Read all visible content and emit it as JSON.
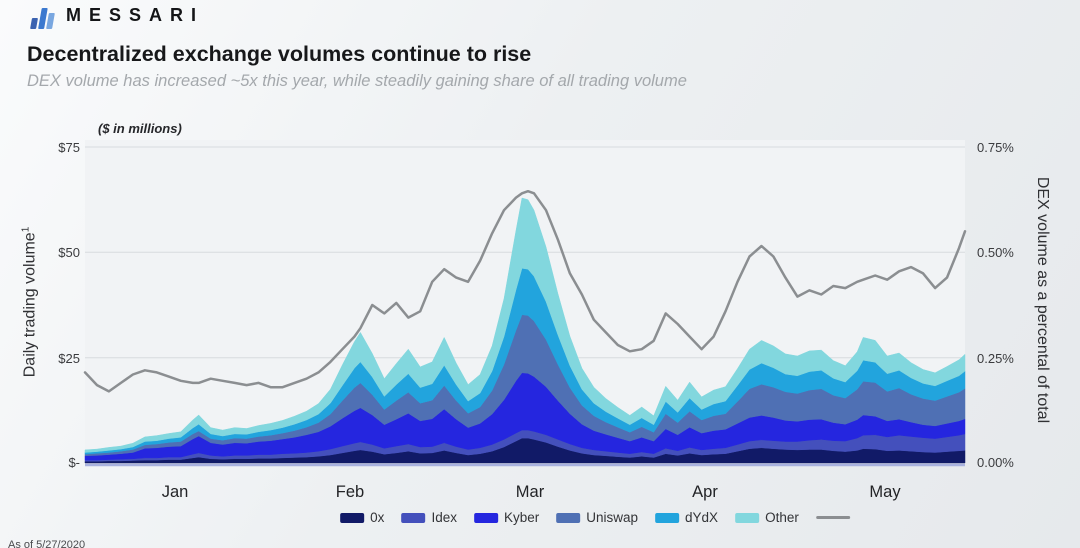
{
  "header": {
    "brand": "MESSARI",
    "logo_colors": [
      "#3b62b0",
      "#3c79cf",
      "#79a7e0"
    ],
    "title": "Decentralized exchange volumes continue to rise",
    "subtitle": "DEX volume has increased ~5x this year, while steadily gaining share of all trading volume"
  },
  "chart_data": {
    "type": "area",
    "stacked": true,
    "title": "Decentralized exchange volumes continue to rise",
    "units_note": "($ in millions)",
    "grid": true,
    "left_axis": {
      "label": "Daily trading volume",
      "superscript": "1",
      "ticks": [
        "$75",
        "$50",
        "$25",
        "$-"
      ],
      "min": 0,
      "max": 75
    },
    "right_axis": {
      "label": "DEX volume as a percental of total",
      "ticks": [
        "0.75%",
        "0.50%",
        "0.25%",
        "0.00%"
      ],
      "min": 0,
      "max": 0.75
    },
    "x_axis": {
      "labels": [
        "Jan",
        "Feb",
        "Mar",
        "Apr",
        "May"
      ],
      "start": "Jan 1 2020",
      "end": "May 27 2020",
      "days_total": 147
    },
    "days": [
      0,
      2,
      4,
      6,
      8,
      10,
      12,
      14,
      16,
      18,
      19,
      21,
      23,
      25,
      27,
      29,
      31,
      33,
      35,
      37,
      39,
      41,
      43,
      45,
      46,
      48,
      50,
      52,
      54,
      56,
      58,
      60,
      62,
      64,
      66,
      68,
      70,
      72,
      73,
      74,
      75,
      77,
      79,
      81,
      83,
      85,
      87,
      89,
      91,
      93,
      95,
      97,
      99,
      101,
      103,
      105,
      107,
      109,
      111,
      113,
      115,
      117,
      119,
      121,
      123,
      125,
      127,
      129,
      130,
      132,
      134,
      136,
      138,
      140,
      142,
      144,
      146,
      147
    ],
    "series": [
      {
        "name": "0x",
        "color": "#111a67",
        "values": [
          0.4,
          0.4,
          0.5,
          0.5,
          0.6,
          0.7,
          0.7,
          0.8,
          0.8,
          1.2,
          1.4,
          1.0,
          0.9,
          1.0,
          1.0,
          1.1,
          1.1,
          1.2,
          1.3,
          1.4,
          1.6,
          1.9,
          2.4,
          2.9,
          3.1,
          2.7,
          2.1,
          2.4,
          2.8,
          2.3,
          2.4,
          3.0,
          2.4,
          1.9,
          2.2,
          2.8,
          3.8,
          5.2,
          5.9,
          5.9,
          5.6,
          4.9,
          3.9,
          3.0,
          2.3,
          1.9,
          1.7,
          1.5,
          1.3,
          1.6,
          1.3,
          2.2,
          1.8,
          2.3,
          1.9,
          2.1,
          2.2,
          2.8,
          3.4,
          3.6,
          3.4,
          3.2,
          3.1,
          3.2,
          3.2,
          2.9,
          2.7,
          3.0,
          3.4,
          3.3,
          2.9,
          3.0,
          2.8,
          2.6,
          2.5,
          2.7,
          2.9,
          3.0
        ]
      },
      {
        "name": "Idex",
        "color": "#4450bc",
        "values": [
          0.3,
          0.3,
          0.3,
          0.4,
          0.4,
          0.5,
          0.5,
          0.6,
          0.6,
          0.9,
          1.0,
          0.8,
          0.7,
          0.8,
          0.8,
          0.9,
          0.9,
          1.0,
          1.0,
          1.1,
          1.2,
          1.4,
          1.6,
          1.8,
          1.9,
          1.7,
          1.4,
          1.6,
          1.7,
          1.5,
          1.5,
          1.8,
          1.5,
          1.3,
          1.4,
          1.6,
          1.8,
          1.9,
          1.9,
          1.9,
          1.9,
          1.8,
          1.7,
          1.5,
          1.3,
          1.2,
          1.1,
          1.0,
          0.9,
          1.0,
          0.9,
          1.3,
          1.1,
          1.4,
          1.2,
          1.3,
          1.4,
          1.6,
          1.8,
          1.9,
          1.9,
          1.9,
          2.0,
          2.2,
          2.4,
          2.4,
          2.5,
          2.9,
          3.2,
          3.4,
          3.3,
          3.6,
          3.5,
          3.4,
          3.3,
          3.5,
          3.7,
          3.9
        ]
      },
      {
        "name": "Kyber",
        "color": "#2526df",
        "values": [
          1.0,
          1.1,
          1.2,
          1.3,
          1.5,
          2.3,
          2.4,
          2.5,
          2.6,
          3.6,
          4.0,
          3.0,
          2.8,
          3.0,
          2.9,
          3.1,
          3.3,
          3.5,
          3.8,
          4.2,
          4.6,
          5.4,
          6.6,
          7.7,
          8.1,
          7.0,
          5.6,
          6.4,
          7.3,
          6.2,
          6.6,
          8.0,
          6.5,
          5.2,
          5.8,
          7.2,
          9.4,
          12.4,
          13.6,
          13.5,
          13.0,
          11.4,
          9.2,
          7.2,
          5.6,
          4.6,
          4.0,
          3.5,
          3.0,
          3.5,
          3.0,
          4.6,
          3.8,
          4.8,
          4.0,
          4.3,
          4.4,
          5.0,
          5.6,
          5.8,
          5.5,
          5.0,
          4.8,
          4.9,
          4.8,
          4.3,
          4.0,
          4.4,
          4.8,
          4.4,
          3.8,
          3.8,
          3.4,
          3.1,
          3.0,
          3.2,
          3.4,
          3.6
        ]
      },
      {
        "name": "Uniswap",
        "color": "#4f70b4",
        "values": [
          0.4,
          0.5,
          0.5,
          0.6,
          0.7,
          0.8,
          0.9,
          1.0,
          1.1,
          1.2,
          1.2,
          1.0,
          1.0,
          1.1,
          1.1,
          1.2,
          1.3,
          1.4,
          1.6,
          1.8,
          2.2,
          2.9,
          4.2,
          5.5,
          5.9,
          4.8,
          3.6,
          4.4,
          5.0,
          4.2,
          4.4,
          5.6,
          4.4,
          3.4,
          3.9,
          5.6,
          8.4,
          12.0,
          13.8,
          13.7,
          13.2,
          11.2,
          8.6,
          6.2,
          4.5,
          3.5,
          2.9,
          2.5,
          2.1,
          2.5,
          2.1,
          3.6,
          2.9,
          3.8,
          3.1,
          3.5,
          3.7,
          5.2,
          6.8,
          7.4,
          7.2,
          6.8,
          6.6,
          7.0,
          7.2,
          6.5,
          6.2,
          7.2,
          8.0,
          8.0,
          7.0,
          7.4,
          6.6,
          6.2,
          6.0,
          6.4,
          6.8,
          7.2
        ]
      },
      {
        "name": "dYdX",
        "color": "#22a4dd",
        "values": [
          0.4,
          0.4,
          0.5,
          0.5,
          0.6,
          0.8,
          0.8,
          0.9,
          1.0,
          1.4,
          1.6,
          1.1,
          1.0,
          1.0,
          1.0,
          1.1,
          1.2,
          1.3,
          1.5,
          1.7,
          2.0,
          2.6,
          3.6,
          4.6,
          5.0,
          4.2,
          3.1,
          3.8,
          4.4,
          3.7,
          3.9,
          4.8,
          3.8,
          2.9,
          3.3,
          4.6,
          6.6,
          9.6,
          11.0,
          11.0,
          10.6,
          9.0,
          7.0,
          5.2,
          3.8,
          3.0,
          2.5,
          2.1,
          1.8,
          2.1,
          1.8,
          2.9,
          2.4,
          3.1,
          2.5,
          2.8,
          3.0,
          3.8,
          4.6,
          5.0,
          4.6,
          4.2,
          4.2,
          4.4,
          4.4,
          4.0,
          3.8,
          4.4,
          5.0,
          4.8,
          4.2,
          4.2,
          3.9,
          3.6,
          3.5,
          3.7,
          3.9,
          4.1
        ]
      },
      {
        "name": "Other",
        "color": "#82d7de",
        "values": [
          0.6,
          0.6,
          0.7,
          0.7,
          0.9,
          1.1,
          1.2,
          1.2,
          1.3,
          1.9,
          2.2,
          1.5,
          1.4,
          1.5,
          1.4,
          1.5,
          1.6,
          1.7,
          1.9,
          2.1,
          2.5,
          3.3,
          4.9,
          6.3,
          7.0,
          5.6,
          4.2,
          5.0,
          5.8,
          4.9,
          5.2,
          6.6,
          5.1,
          3.9,
          4.4,
          6.0,
          9.0,
          14.1,
          16.7,
          16.5,
          15.7,
          13.0,
          9.8,
          7.0,
          5.0,
          3.8,
          3.1,
          2.6,
          2.2,
          2.6,
          2.1,
          3.6,
          2.9,
          3.8,
          3.0,
          3.3,
          3.4,
          4.0,
          4.8,
          5.4,
          5.2,
          4.8,
          4.7,
          4.9,
          4.8,
          4.2,
          3.9,
          4.5,
          5.4,
          5.2,
          4.2,
          4.1,
          3.6,
          3.3,
          3.1,
          3.4,
          3.8,
          4.0
        ]
      }
    ],
    "line_series": {
      "name": "DEX volume as a percental of total",
      "color": "#8b8e91",
      "axis": "right",
      "values": [
        0.215,
        0.185,
        0.17,
        0.19,
        0.21,
        0.22,
        0.215,
        0.205,
        0.195,
        0.19,
        0.19,
        0.2,
        0.195,
        0.19,
        0.185,
        0.19,
        0.18,
        0.18,
        0.19,
        0.2,
        0.215,
        0.24,
        0.27,
        0.3,
        0.32,
        0.375,
        0.355,
        0.38,
        0.345,
        0.36,
        0.43,
        0.46,
        0.44,
        0.43,
        0.48,
        0.545,
        0.6,
        0.63,
        0.64,
        0.645,
        0.64,
        0.6,
        0.53,
        0.45,
        0.4,
        0.34,
        0.31,
        0.28,
        0.265,
        0.27,
        0.29,
        0.355,
        0.33,
        0.3,
        0.27,
        0.3,
        0.36,
        0.43,
        0.49,
        0.515,
        0.49,
        0.44,
        0.395,
        0.41,
        0.4,
        0.42,
        0.415,
        0.43,
        0.435,
        0.445,
        0.435,
        0.455,
        0.465,
        0.45,
        0.415,
        0.44,
        0.51,
        0.55
      ]
    },
    "colors": {
      "grid": "#d8dbde",
      "baseline": "#a9b2df",
      "plot_bg": "#f1f3f5"
    }
  },
  "legend": {
    "items": [
      {
        "label": "0x",
        "color": "#111a67"
      },
      {
        "label": "Idex",
        "color": "#4450bc"
      },
      {
        "label": "Kyber",
        "color": "#2526df"
      },
      {
        "label": "Uniswap",
        "color": "#4f70b4"
      },
      {
        "label": "dYdX",
        "color": "#22a4dd"
      },
      {
        "label": "Other",
        "color": "#82d7de"
      }
    ],
    "line_swatch_color": "#8b8e91"
  },
  "footer": {
    "as_of": "As of 5/27/2020"
  }
}
